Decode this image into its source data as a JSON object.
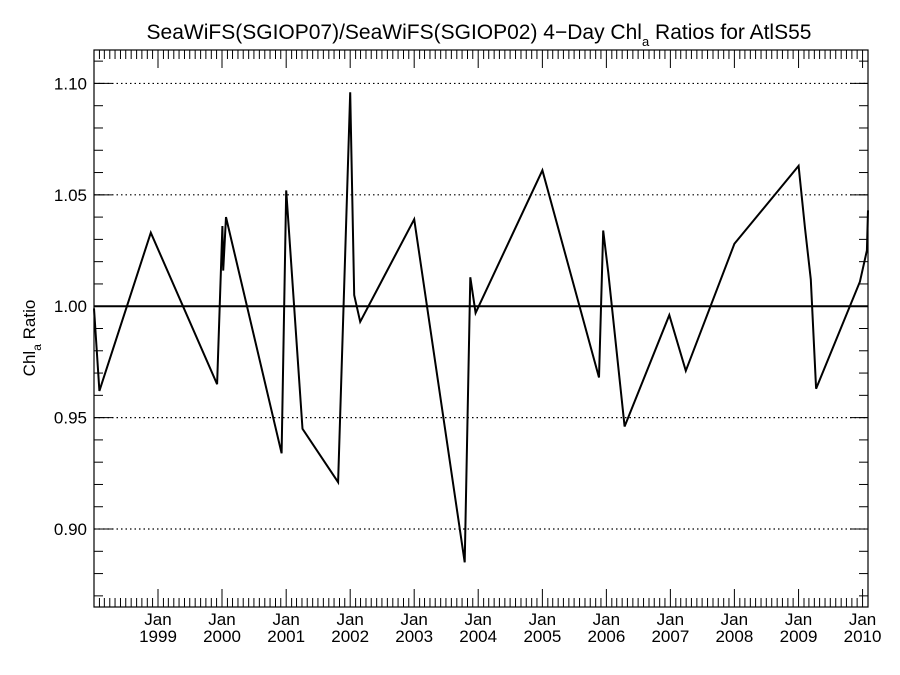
{
  "chart_data": {
    "type": "line",
    "title": "SeaWiFS(SGIOP07)/SeaWiFS(SGIOP02) 4−Day Chl",
    "title_sub": "a",
    "title_suffix": " Ratios for AtlS55",
    "ylabel": "Chl",
    "ylabel_sub": "a",
    "ylabel_suffix": " Ratio",
    "xlabel": "",
    "xlim": [
      "1998-01-01",
      "2010-02-01"
    ],
    "ylim": [
      0.865,
      1.115
    ],
    "ytick_values": [
      0.9,
      0.95,
      1.0,
      1.05,
      1.1
    ],
    "ytick_labels": [
      "0.90",
      "0.95",
      "1.00",
      "1.05",
      "1.10"
    ],
    "xtick_dates": [
      "1999-01-01",
      "2000-01-01",
      "2001-01-01",
      "2002-01-01",
      "2003-01-01",
      "2004-01-01",
      "2005-01-01",
      "2006-01-01",
      "2007-01-01",
      "2008-01-01",
      "2009-01-01",
      "2010-01-01"
    ],
    "xtick_month": "Jan",
    "xtick_years": [
      "1999",
      "2000",
      "2001",
      "2002",
      "2003",
      "2004",
      "2005",
      "2006",
      "2007",
      "2008",
      "2009",
      "2010"
    ],
    "reference_line": 1.0,
    "grid": "horizontal dotted",
    "series": [
      {
        "x": [
          "1998-01-01",
          "1998-02-01",
          "1998-11-21",
          "1999-12-04",
          "2000-01-03",
          "2000-01-08",
          "2000-01-24",
          "2000-12-06",
          "2001-01-01",
          "2001-04-04",
          "2001-10-24",
          "2002-01-01",
          "2002-01-24",
          "2002-02-27",
          "2003-01-01",
          "2003-10-16",
          "2003-11-17",
          "2003-12-17",
          "2005-01-01",
          "2005-11-20",
          "2005-12-14",
          "2006-01-12",
          "2006-04-15",
          "2006-12-26",
          "2007-03-30",
          "2008-01-01",
          "2009-01-01",
          "2009-02-07",
          "2009-03-12",
          "2009-04-11",
          "2009-12-17",
          "2010-01-26",
          "2010-02-01"
        ],
        "y": [
          0.999,
          0.962,
          1.033,
          0.965,
          1.036,
          1.016,
          1.04,
          0.934,
          1.052,
          0.945,
          0.921,
          1.096,
          1.005,
          0.993,
          1.039,
          0.885,
          1.013,
          0.997,
          1.061,
          0.968,
          1.034,
          1.015,
          0.946,
          0.996,
          0.971,
          1.028,
          1.063,
          1.035,
          1.012,
          0.963,
          1.011,
          1.025,
          1.043
        ]
      }
    ]
  }
}
